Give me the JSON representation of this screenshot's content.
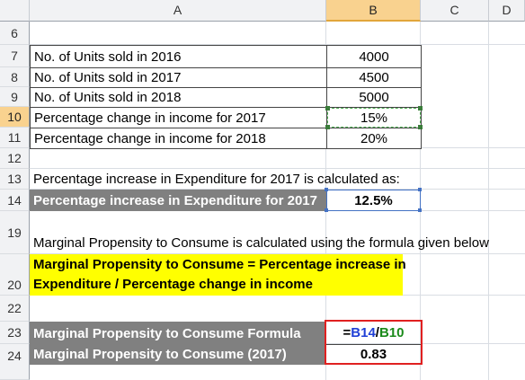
{
  "columns": [
    "A",
    "B",
    "C",
    "D"
  ],
  "rows": [
    "6",
    "7",
    "8",
    "9",
    "10",
    "11",
    "12",
    "13",
    "14",
    "19",
    "20",
    "22",
    "23",
    "24"
  ],
  "units": [
    {
      "label": "No. of Units sold in 2016",
      "value": "4000"
    },
    {
      "label": "No. of Units sold in 2017",
      "value": "4500"
    },
    {
      "label": "No. of Units sold in 2018",
      "value": "5000"
    }
  ],
  "percentages": [
    {
      "label": "Percentage change in income for 2017",
      "value": "15%"
    },
    {
      "label": "Percentage change in income for 2018",
      "value": "20%"
    }
  ],
  "note13": "Percentage increase in Expenditure for 2017 is calculated as:",
  "row14": {
    "label": "Percentage increase in Expenditure for 2017",
    "value": "12.5%"
  },
  "note19": "Marginal Propensity to Consume is calculated using the formula given below",
  "row20": {
    "line1": "Marginal Propensity to Consume = Percentage increase in",
    "line2": "Expenditure / Percentage change in income"
  },
  "row22": {
    "label": "Marginal Propensity to Consume Formula",
    "formula_eq": "=",
    "formula_ref1": "B14",
    "formula_div": "/",
    "formula_ref2": "B10"
  },
  "row23": {
    "label": "Marginal Propensity to Consume (2017)",
    "value": "0.83"
  },
  "colors": {
    "header_selected": "#f9d28f",
    "label_gray": "#808080",
    "highlight_yellow": "#ffff00",
    "ref_blue": "#1f3fd6",
    "ref_green": "#1a8a1a",
    "result_border_red": "#e02020"
  }
}
